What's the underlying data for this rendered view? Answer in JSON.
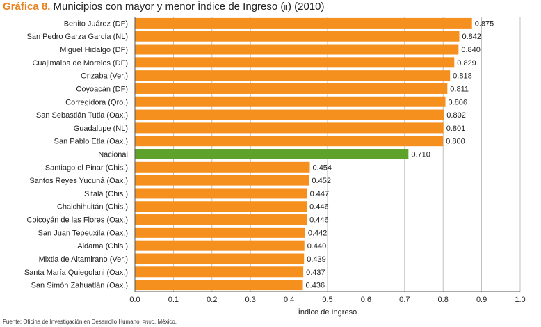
{
  "header": {
    "label": "Gráfica 8.",
    "title_main": "Municipios con mayor y menor Índice de Ingreso (",
    "title_abbr": "II",
    "title_tail": ") (2010)"
  },
  "source": {
    "prefix": "Fuente: Oficina de Investigación en Desarrollo Humano, ",
    "org": "PNUD",
    "suffix": ", México."
  },
  "colors": {
    "bar": "#f5901e",
    "highlight": "#5ea12b",
    "grid": "#b0b0b0",
    "axis": "#555555",
    "text": "#222222"
  },
  "chart_data": {
    "type": "bar",
    "orientation": "horizontal",
    "xlabel": "Índice de Ingreso",
    "xlim": [
      0,
      1.0
    ],
    "xticks": [
      "0.0",
      "0.1",
      "0.2",
      "0.3",
      "0.4",
      "0.5",
      "0.6",
      "0.7",
      "0.8",
      "0.9",
      "1.0"
    ],
    "grid": true,
    "categories": [
      "Benito Juárez (DF)",
      "San Pedro Garza García (NL)",
      "Miguel Hidalgo (DF)",
      "Cuajimalpa de Morelos (DF)",
      "Orizaba (Ver.)",
      "Coyoacán (DF)",
      "Corregidora (Qro.)",
      "San Sebastián Tutla (Oax.)",
      "Guadalupe (NL)",
      "San Pablo Etla (Oax.)",
      "Nacional",
      "Santiago el Pinar (Chis.)",
      "Santos Reyes Yucuná (Oax.)",
      "Sitalá (Chis.)",
      "Chalchihuitán (Chis.)",
      "Coicoyán de las Flores (Oax.)",
      "San Juan Tepeuxila (Oax.)",
      "Aldama (Chis.)",
      "Mixtla de Altamirano (Ver.)",
      "Santa María Quiegolani (Oax.)",
      "San Simón Zahuatlán (Oax.)"
    ],
    "values": [
      0.875,
      0.842,
      0.84,
      0.829,
      0.818,
      0.811,
      0.806,
      0.802,
      0.801,
      0.8,
      0.71,
      0.454,
      0.452,
      0.447,
      0.446,
      0.446,
      0.442,
      0.44,
      0.439,
      0.437,
      0.436
    ],
    "value_labels": [
      "0.875",
      "0.842",
      "0.840",
      "0.829",
      "0.818",
      "0.811",
      "0.806",
      "0.802",
      "0.801",
      "0.800",
      "0.710",
      "0.454",
      "0.452",
      "0.447",
      "0.446",
      "0.446",
      "0.442",
      "0.440",
      "0.439",
      "0.437",
      "0.436"
    ],
    "highlight_category": "Nacional"
  }
}
